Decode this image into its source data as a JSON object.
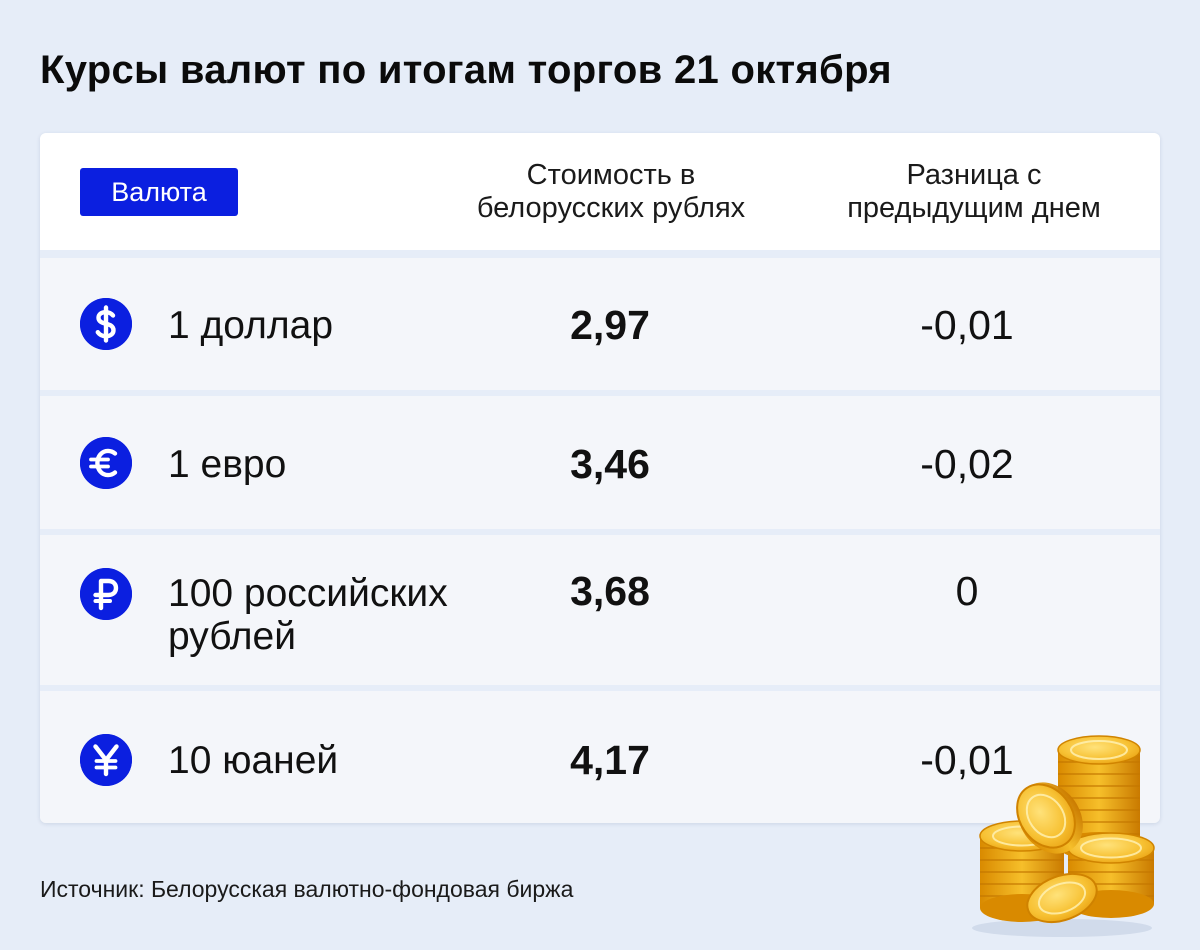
{
  "title": "Курсы валют по итогам торгов 21 октября",
  "header": {
    "currency_label": "Валюта",
    "value_label_line1": "Стоимость в",
    "value_label_line2": "белорусских рублях",
    "diff_label_line1": "Разница с",
    "diff_label_line2": "предыдущим днем"
  },
  "rows": [
    {
      "icon": "dollar-icon",
      "name_line1": "1 доллар",
      "name_line2": "",
      "value": "2,97",
      "change": "-0,01"
    },
    {
      "icon": "euro-icon",
      "name_line1": "1 евро",
      "name_line2": "",
      "value": "3,46",
      "change": "-0,02"
    },
    {
      "icon": "ruble-icon",
      "name_line1": "100 российских",
      "name_line2": "рублей",
      "value": "3,68",
      "change": "0"
    },
    {
      "icon": "yuan-icon",
      "name_line1": "10 юаней",
      "name_line2": "",
      "value": "4,17",
      "change": "-0,01"
    }
  ],
  "source": "Источник: Белорусская валютно-фондовая биржа",
  "colors": {
    "accent": "#0b1fe0",
    "background": "#e6edf8",
    "row_background": "#f4f6fa",
    "coin": "#f2b51c"
  }
}
